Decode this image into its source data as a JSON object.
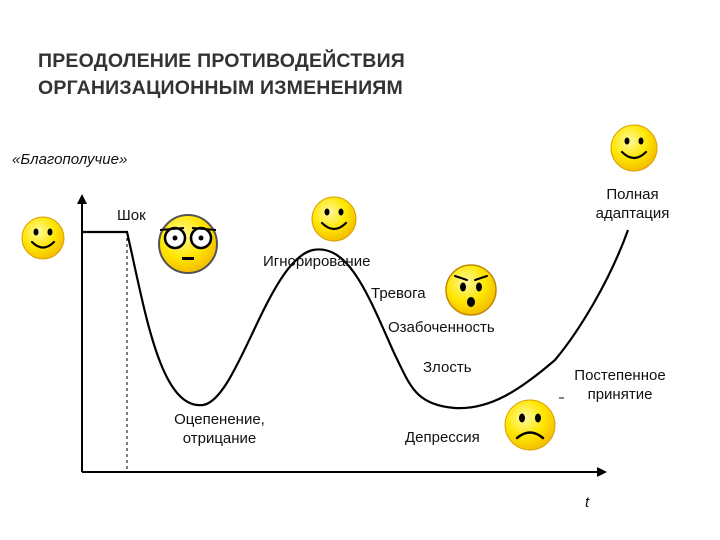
{
  "title": {
    "line1": "ПРЕОДОЛЕНИЕ ПРОТИВОДЕЙСТВИЯ",
    "line2": "ОРГАНИЗАЦИОННЫМ ИЗМЕНЕНИЯМ"
  },
  "y_axis_label": "«Благополучие»",
  "x_axis_label": "t",
  "stages": {
    "shock": "Шок",
    "numbness_1": "Оцепенение,",
    "numbness_2": "отрицание",
    "ignoring": "Игнорирование",
    "anxiety": "Тревога",
    "worry": "Озабоченность",
    "anger": "Злость",
    "depression": "Депрессия",
    "gradual_1": "Постепенное",
    "gradual_2": "принятие",
    "full_1": "Полная",
    "full_2": "адаптация"
  },
  "colors": {
    "curve": "#000000",
    "face_fill": "#ffe600",
    "face_shade": "#f2b800",
    "title": "#333333"
  },
  "icons": [
    "smiley-happy-icon",
    "smiley-shocked-icon",
    "smiley-worried-icon",
    "smiley-sad-icon"
  ]
}
